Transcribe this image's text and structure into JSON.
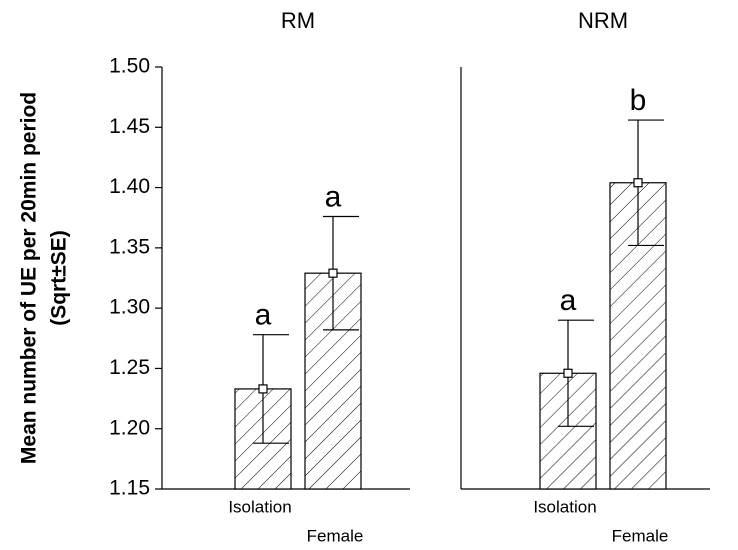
{
  "chart_data": [
    {
      "type": "bar",
      "title": "RM",
      "ylabel": [
        "Mean number of UE per 20min period",
        "(Sqrt±SE)"
      ],
      "categories": [
        "Isolation",
        "Female"
      ],
      "values": [
        1.233,
        1.329
      ],
      "errors": [
        0.045,
        0.047
      ],
      "letters": [
        "a",
        "a"
      ],
      "ylim": [
        1.15,
        1.5
      ],
      "yticks": [
        1.15,
        {
          "value": 1.2,
          "label": "1.20"
        },
        1.25,
        {
          "value": 1.3,
          "label": "1.30"
        },
        1.35,
        {
          "value": 1.4,
          "label": "1.40"
        },
        1.45,
        {
          "value": 1.5,
          "label": "1.50"
        }
      ]
    },
    {
      "type": "bar",
      "title": "NRM",
      "categories": [
        "Isolation",
        "Female"
      ],
      "values": [
        1.246,
        1.404
      ],
      "errors": [
        0.044,
        0.052
      ],
      "letters": [
        "a",
        "b"
      ],
      "ylim": [
        1.15,
        1.5
      ]
    }
  ]
}
